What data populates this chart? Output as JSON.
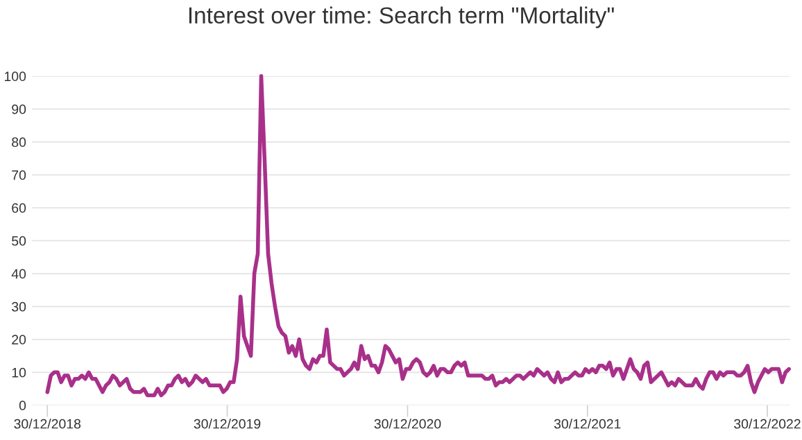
{
  "chart_data": {
    "type": "line",
    "title": "Interest over time: Search term \"Mortality\"",
    "x": [
      "2018-12-30",
      "2019-01-06",
      "2019-01-13",
      "2019-01-20",
      "2019-01-27",
      "2019-02-03",
      "2019-02-10",
      "2019-02-17",
      "2019-02-24",
      "2019-03-03",
      "2019-03-10",
      "2019-03-17",
      "2019-03-24",
      "2019-03-31",
      "2019-04-07",
      "2019-04-14",
      "2019-04-21",
      "2019-04-28",
      "2019-05-05",
      "2019-05-12",
      "2019-05-19",
      "2019-05-26",
      "2019-06-02",
      "2019-06-09",
      "2019-06-16",
      "2019-06-23",
      "2019-06-30",
      "2019-07-07",
      "2019-07-14",
      "2019-07-21",
      "2019-07-28",
      "2019-08-04",
      "2019-08-11",
      "2019-08-18",
      "2019-08-25",
      "2019-09-01",
      "2019-09-08",
      "2019-09-15",
      "2019-09-22",
      "2019-09-29",
      "2019-10-06",
      "2019-10-13",
      "2019-10-20",
      "2019-10-27",
      "2019-11-03",
      "2019-11-10",
      "2019-11-17",
      "2019-11-24",
      "2019-12-01",
      "2019-12-08",
      "2019-12-15",
      "2019-12-22",
      "2019-12-29",
      "2020-01-05",
      "2020-01-12",
      "2020-01-19",
      "2020-01-26",
      "2020-02-02",
      "2020-02-09",
      "2020-02-16",
      "2020-02-23",
      "2020-03-01",
      "2020-03-08",
      "2020-03-15",
      "2020-03-22",
      "2020-03-29",
      "2020-04-05",
      "2020-04-12",
      "2020-04-19",
      "2020-04-26",
      "2020-05-03",
      "2020-05-10",
      "2020-05-17",
      "2020-05-24",
      "2020-05-31",
      "2020-06-07",
      "2020-06-14",
      "2020-06-21",
      "2020-06-28",
      "2020-07-05",
      "2020-07-12",
      "2020-07-19",
      "2020-07-26",
      "2020-08-02",
      "2020-08-09",
      "2020-08-16",
      "2020-08-23",
      "2020-08-30",
      "2020-09-06",
      "2020-09-13",
      "2020-09-20",
      "2020-09-27",
      "2020-10-04",
      "2020-10-11",
      "2020-10-18",
      "2020-10-25",
      "2020-11-01",
      "2020-11-08",
      "2020-11-15",
      "2020-11-22",
      "2020-11-29",
      "2020-12-06",
      "2020-12-13",
      "2020-12-20",
      "2020-12-27",
      "2021-01-03",
      "2021-01-10",
      "2021-01-17",
      "2021-01-24",
      "2021-01-31",
      "2021-02-07",
      "2021-02-14",
      "2021-02-21",
      "2021-02-28",
      "2021-03-07",
      "2021-03-14",
      "2021-03-21",
      "2021-03-28",
      "2021-04-04",
      "2021-04-11",
      "2021-04-18",
      "2021-04-25",
      "2021-05-02",
      "2021-05-09",
      "2021-05-16",
      "2021-05-23",
      "2021-05-30",
      "2021-06-06",
      "2021-06-13",
      "2021-06-20",
      "2021-06-27",
      "2021-07-04",
      "2021-07-11",
      "2021-07-18",
      "2021-07-25",
      "2021-08-01",
      "2021-08-08",
      "2021-08-15",
      "2021-08-22",
      "2021-08-29",
      "2021-09-05",
      "2021-09-12",
      "2021-09-19",
      "2021-09-26",
      "2021-10-03",
      "2021-10-10",
      "2021-10-17",
      "2021-10-24",
      "2021-10-31",
      "2021-11-07",
      "2021-11-14",
      "2021-11-21",
      "2021-11-28",
      "2021-12-05",
      "2021-12-12",
      "2021-12-19",
      "2021-12-26",
      "2022-01-02",
      "2022-01-09",
      "2022-01-16",
      "2022-01-23",
      "2022-01-30",
      "2022-02-06",
      "2022-02-13",
      "2022-02-20",
      "2022-02-27",
      "2022-03-06",
      "2022-03-13",
      "2022-03-20",
      "2022-03-27",
      "2022-04-03",
      "2022-04-10",
      "2022-04-17",
      "2022-04-24",
      "2022-05-01",
      "2022-05-08",
      "2022-05-15",
      "2022-05-22",
      "2022-05-29",
      "2022-06-05",
      "2022-06-12",
      "2022-06-19",
      "2022-06-26",
      "2022-07-03",
      "2022-07-10",
      "2022-07-17",
      "2022-07-24",
      "2022-07-31",
      "2022-08-07",
      "2022-08-14",
      "2022-08-21",
      "2022-08-28",
      "2022-09-04",
      "2022-09-11",
      "2022-09-18",
      "2022-09-25",
      "2022-10-02",
      "2022-10-09",
      "2022-10-16",
      "2022-10-23",
      "2022-10-30",
      "2022-11-06",
      "2022-11-13",
      "2022-11-20",
      "2022-11-27",
      "2022-12-04",
      "2022-12-11",
      "2022-12-18",
      "2022-12-25",
      "2023-01-01",
      "2023-01-08",
      "2023-01-15",
      "2023-01-22",
      "2023-01-29",
      "2023-02-05",
      "2023-02-12"
    ],
    "series": [
      {
        "color": "#a8308a",
        "values": [
          4,
          9,
          10,
          10,
          7,
          9,
          9,
          6,
          8,
          8,
          9,
          8,
          10,
          8,
          8,
          6,
          4,
          6,
          7,
          9,
          8,
          6,
          7,
          8,
          5,
          4,
          4,
          4,
          5,
          3,
          3,
          3,
          5,
          3,
          4,
          6,
          6,
          8,
          9,
          7,
          8,
          6,
          7,
          9,
          8,
          7,
          8,
          6,
          6,
          6,
          6,
          4,
          5,
          7,
          7,
          14,
          33,
          21,
          18,
          15,
          40,
          46,
          100,
          74,
          46,
          37,
          30,
          24,
          22,
          21,
          16,
          18,
          15,
          20,
          14,
          12,
          11,
          14,
          13,
          15,
          15,
          23,
          13,
          12,
          11,
          11,
          9,
          10,
          11,
          13,
          11,
          18,
          14,
          15,
          12,
          12,
          10,
          13,
          18,
          17,
          15,
          13,
          14,
          8,
          11,
          11,
          13,
          14,
          13,
          10,
          9,
          10,
          12,
          9,
          11,
          11,
          10,
          10,
          12,
          13,
          12,
          13,
          9,
          9,
          9,
          9,
          9,
          8,
          8,
          9,
          6,
          7,
          7,
          8,
          7,
          8,
          9,
          9,
          8,
          9,
          10,
          9,
          11,
          10,
          9,
          10,
          8,
          7,
          10,
          7,
          8,
          8,
          9,
          10,
          9,
          9,
          11,
          10,
          11,
          10,
          12,
          12,
          11,
          13,
          9,
          11,
          11,
          8,
          11,
          14,
          11,
          10,
          8,
          12,
          13,
          7,
          8,
          9,
          10,
          8,
          6,
          7,
          6,
          8,
          7,
          6,
          6,
          6,
          8,
          6,
          5,
          8,
          10,
          10,
          8,
          10,
          9,
          10,
          10,
          10,
          9,
          9,
          10,
          12,
          7,
          4,
          7,
          9,
          11,
          10,
          11,
          11,
          11,
          7,
          10,
          11
        ]
      }
    ],
    "xlim": [
      "2018-11-29",
      "2023-02-14"
    ],
    "xticks": [
      {
        "value": "2018-12-30",
        "label": "30/12/2018"
      },
      {
        "value": "2019-12-30",
        "label": "30/12/2019"
      },
      {
        "value": "2020-12-30",
        "label": "30/12/2020"
      },
      {
        "value": "2021-12-30",
        "label": "30/12/2021"
      },
      {
        "value": "2022-12-30",
        "label": "30/12/2022"
      }
    ],
    "ylim": [
      0,
      100
    ],
    "yticks": [
      0,
      10,
      20,
      30,
      40,
      50,
      60,
      70,
      80,
      90,
      100
    ],
    "grid": "y",
    "marker": "none",
    "line_style": "solid"
  }
}
